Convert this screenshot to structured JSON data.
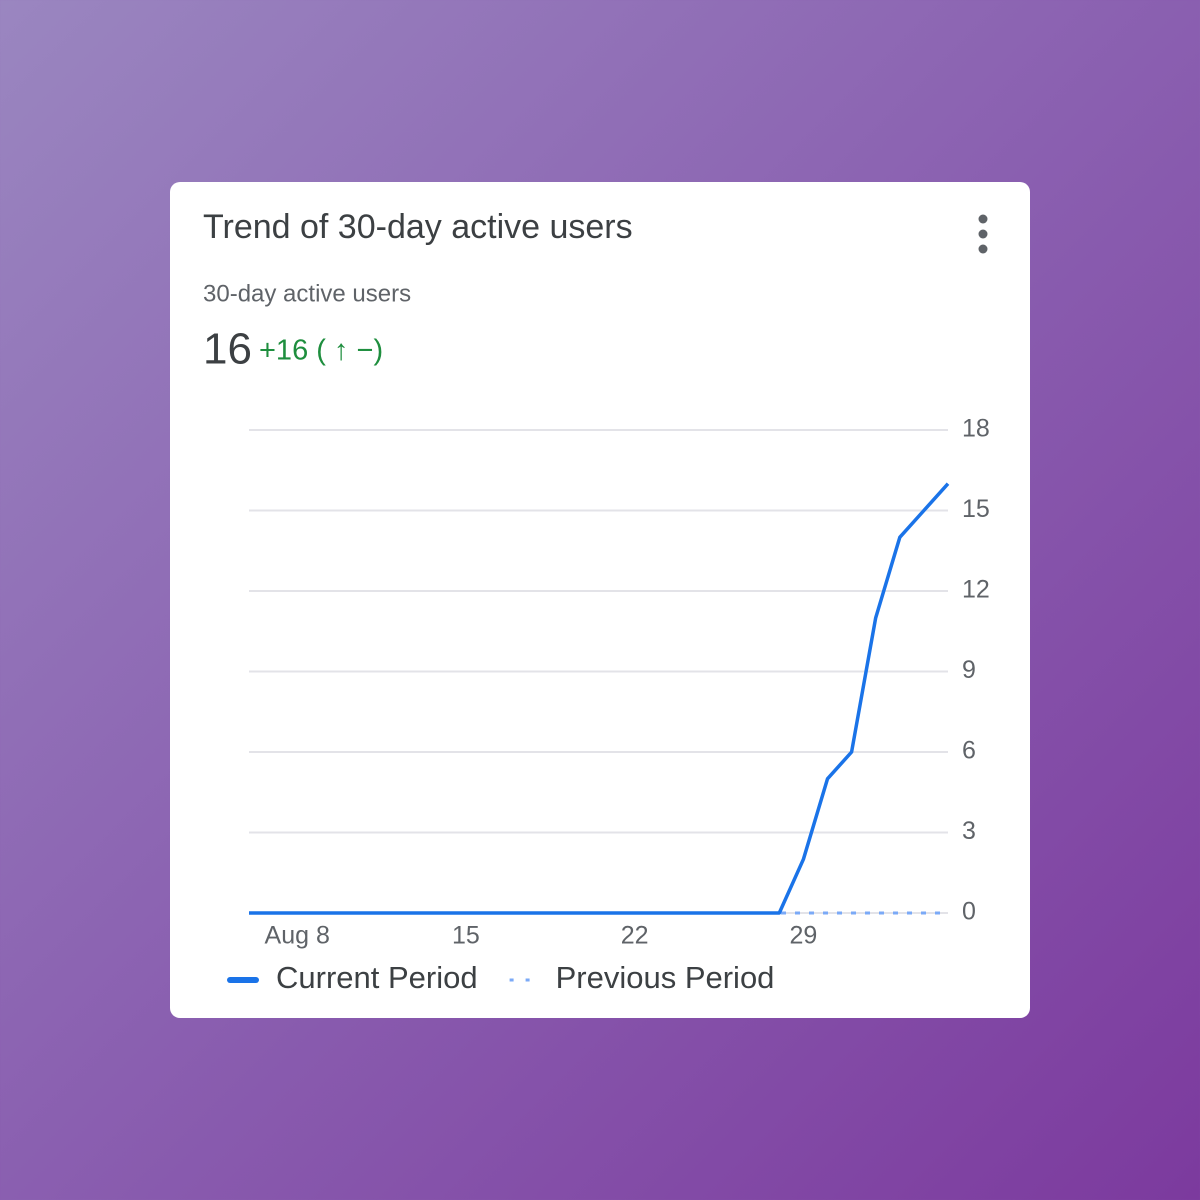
{
  "card": {
    "title": "Trend of 30-day active users",
    "metric_label": "30-day active users",
    "metric_value": 16,
    "metric_change": "+16 ( ↑ −)"
  },
  "chart_data": {
    "type": "line",
    "categories": [
      null,
      null,
      "Aug 8",
      null,
      null,
      null,
      null,
      null,
      null,
      "15",
      null,
      null,
      null,
      null,
      null,
      null,
      "22",
      null,
      null,
      null,
      null,
      null,
      null,
      "29",
      null,
      null,
      null,
      null,
      null,
      null
    ],
    "series": [
      {
        "name": "Current Period",
        "color": "#1a73e8",
        "style": "solid",
        "values": [
          0,
          0,
          0,
          0,
          0,
          0,
          0,
          0,
          0,
          0,
          0,
          0,
          0,
          0,
          0,
          0,
          0,
          0,
          0,
          0,
          0,
          0,
          0,
          2,
          5,
          6,
          11,
          14,
          15,
          16
        ]
      },
      {
        "name": "Previous Period",
        "color": "#7baaf7",
        "style": "dotted",
        "values": [
          0,
          0,
          0,
          0,
          0,
          0,
          0,
          0,
          0,
          0,
          0,
          0,
          0,
          0,
          0,
          0,
          0,
          0,
          0,
          0,
          0,
          0,
          0,
          0,
          0,
          0,
          0,
          0,
          0,
          0
        ]
      }
    ],
    "ylim": [
      0,
      18
    ],
    "yticks": [
      0,
      3,
      6,
      9,
      12,
      15,
      18
    ],
    "grid": true,
    "y_axis_side": "right",
    "legend": "bottom"
  }
}
